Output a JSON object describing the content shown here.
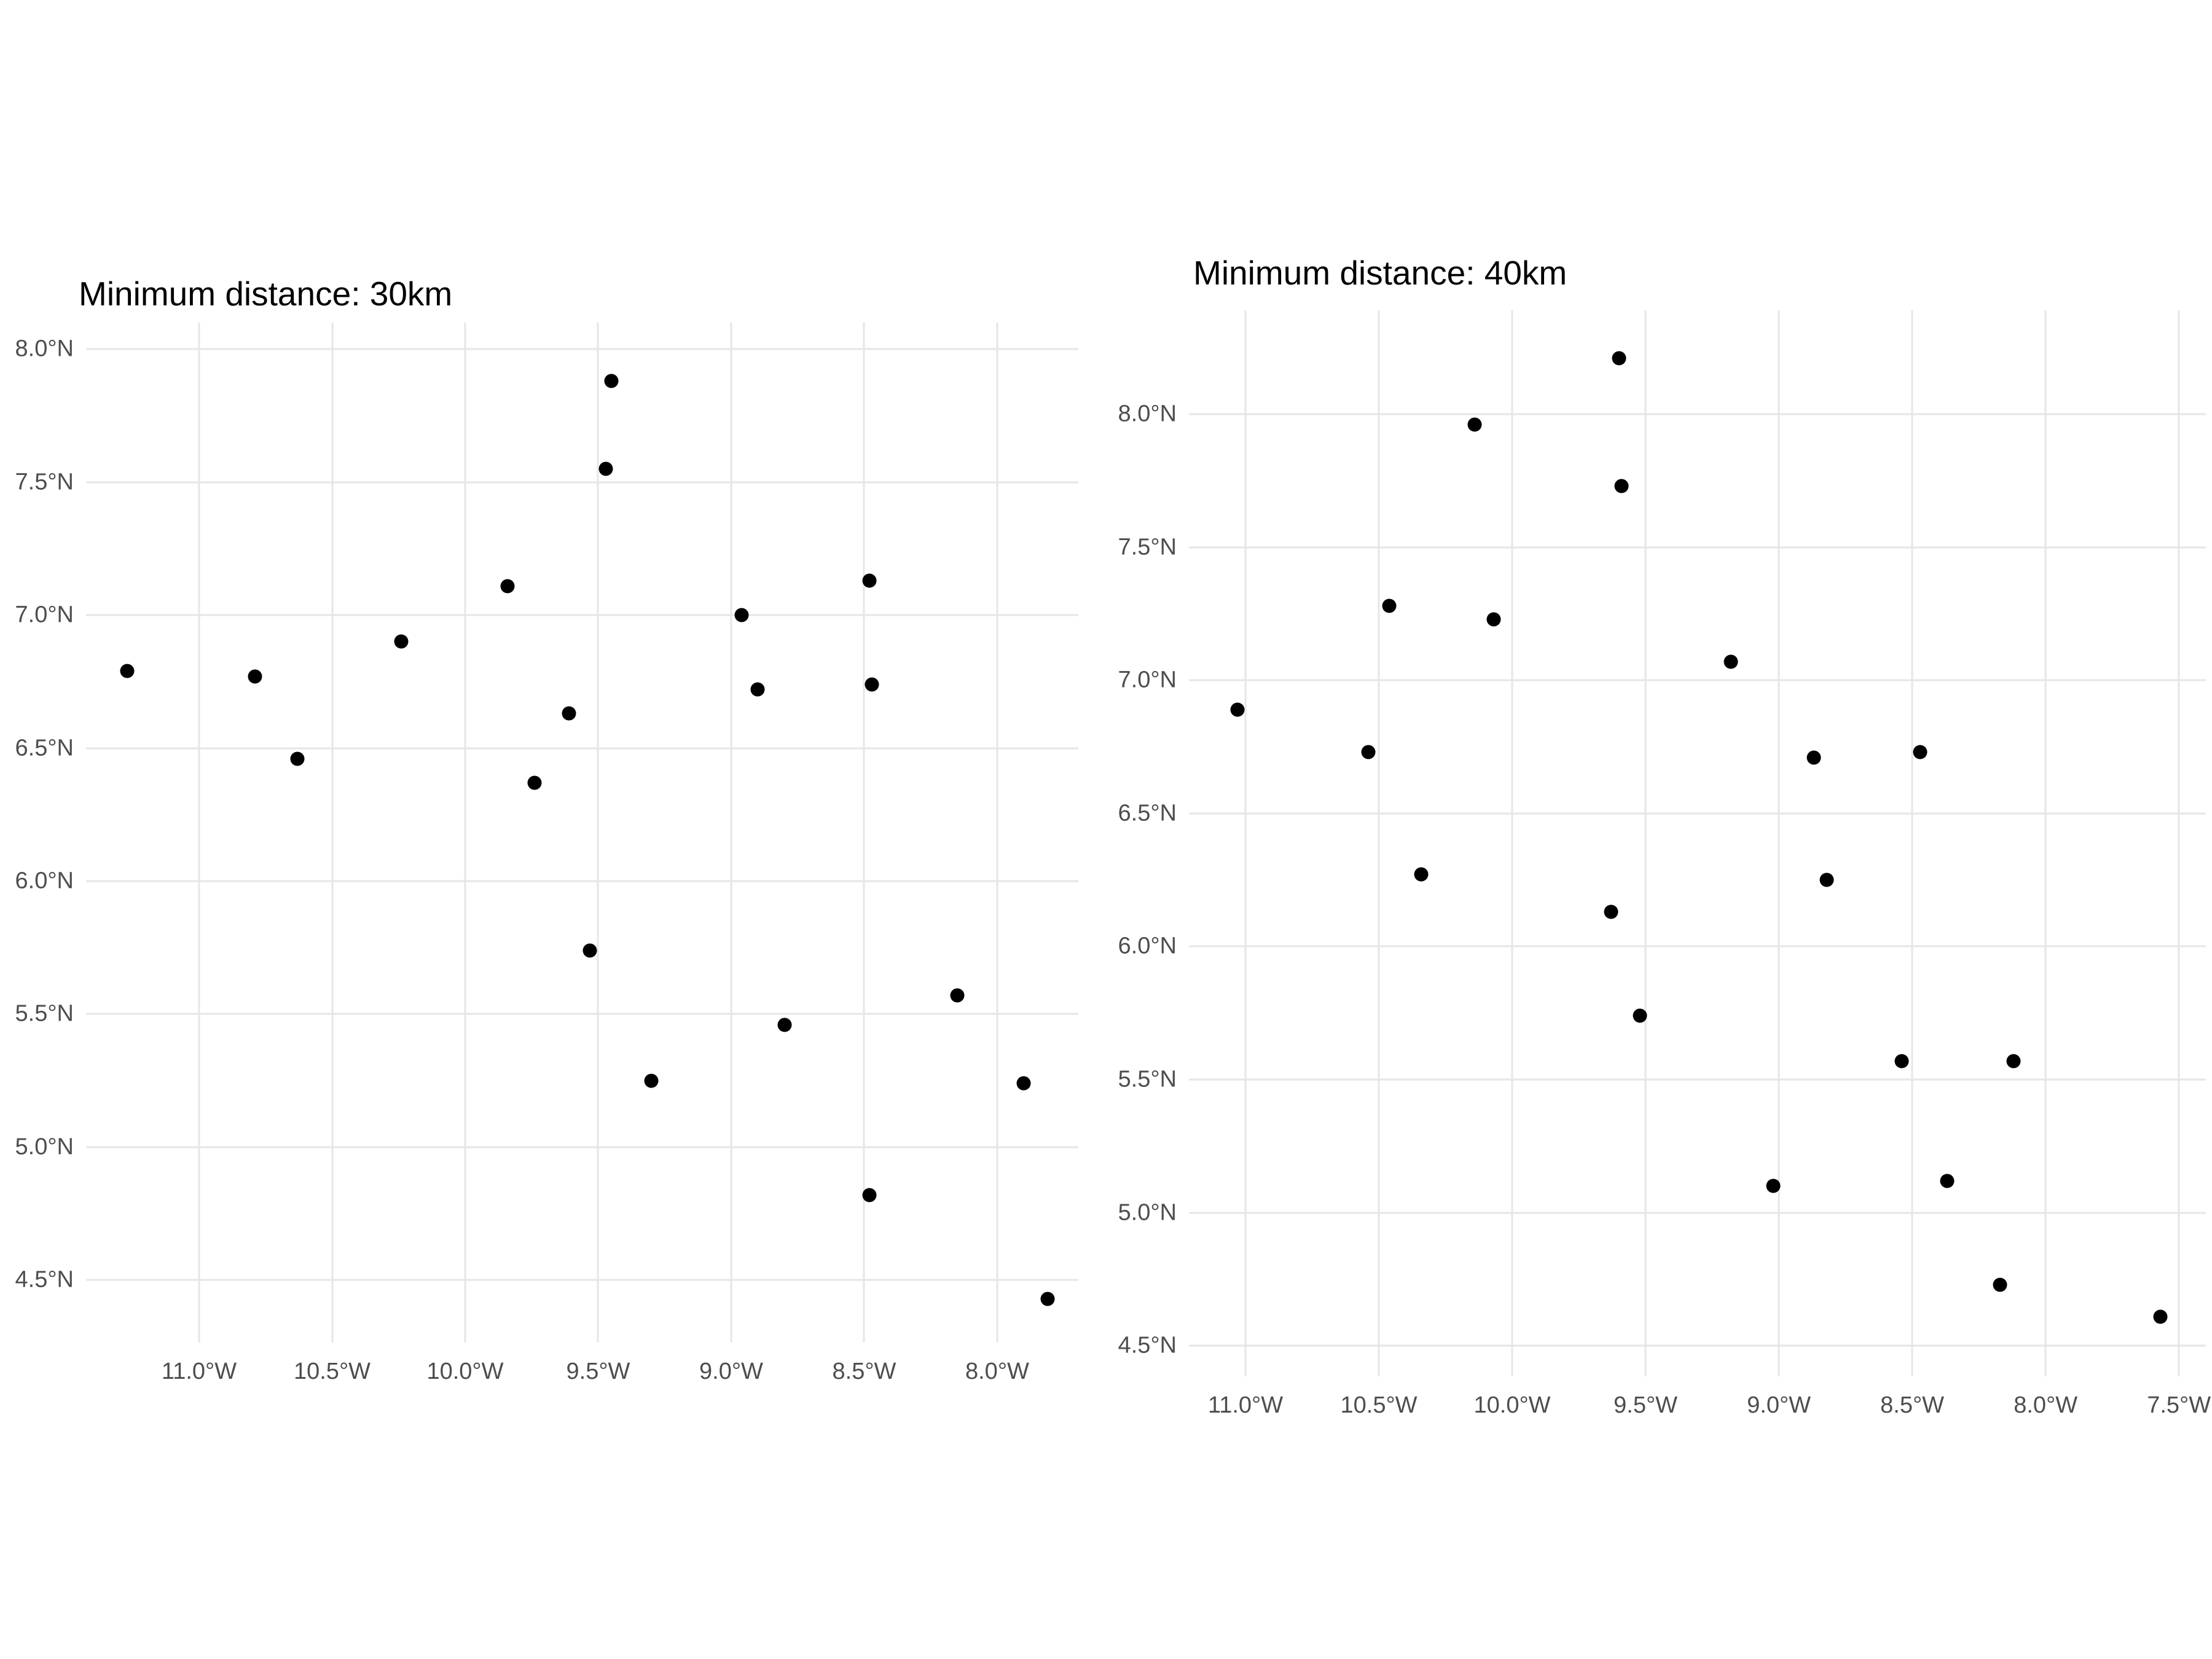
{
  "page": {
    "background": "#FFFFFF"
  },
  "colors": {
    "background": "#FFFFFF",
    "point": "#000000",
    "gridline": "#E6E6E6",
    "tick_label": "#4D4D4D",
    "title": "#000000"
  },
  "chart_data": [
    {
      "id": "min-dist-30km",
      "type": "scatter",
      "title": "Minimum distance: 30km",
      "xlabel": "",
      "ylabel": "",
      "legend": "none",
      "grid": true,
      "xlim": [
        -11.425,
        -7.695
      ],
      "ylim": [
        4.265,
        8.1
      ],
      "x_ticks": [
        {
          "value": -11.0,
          "label": "11.0°W"
        },
        {
          "value": -10.5,
          "label": "10.5°W"
        },
        {
          "value": -10.0,
          "label": "10.0°W"
        },
        {
          "value": -9.5,
          "label": "9.5°W"
        },
        {
          "value": -9.0,
          "label": "9.0°W"
        },
        {
          "value": -8.5,
          "label": "8.5°W"
        },
        {
          "value": -8.0,
          "label": "8.0°W"
        }
      ],
      "y_ticks": [
        {
          "value": 8.0,
          "label": "8.0°N"
        },
        {
          "value": 7.5,
          "label": "7.5°N"
        },
        {
          "value": 7.0,
          "label": "7.0°N"
        },
        {
          "value": 6.5,
          "label": "6.5°N"
        },
        {
          "value": 6.0,
          "label": "6.0°N"
        },
        {
          "value": 5.5,
          "label": "5.5°N"
        },
        {
          "value": 5.0,
          "label": "5.0°N"
        },
        {
          "value": 4.5,
          "label": "4.5°N"
        }
      ],
      "points": [
        {
          "lon": -11.27,
          "lat": 6.79
        },
        {
          "lon": -10.79,
          "lat": 6.77
        },
        {
          "lon": -10.63,
          "lat": 6.46
        },
        {
          "lon": -10.24,
          "lat": 6.9
        },
        {
          "lon": -9.84,
          "lat": 7.11
        },
        {
          "lon": -9.74,
          "lat": 6.37
        },
        {
          "lon": -9.61,
          "lat": 6.63
        },
        {
          "lon": -9.47,
          "lat": 7.55
        },
        {
          "lon": -9.45,
          "lat": 7.88
        },
        {
          "lon": -9.53,
          "lat": 5.74
        },
        {
          "lon": -9.3,
          "lat": 5.25
        },
        {
          "lon": -8.96,
          "lat": 7.0
        },
        {
          "lon": -8.9,
          "lat": 6.72
        },
        {
          "lon": -8.8,
          "lat": 5.46
        },
        {
          "lon": -8.48,
          "lat": 7.13
        },
        {
          "lon": -8.47,
          "lat": 6.74
        },
        {
          "lon": -8.48,
          "lat": 4.82
        },
        {
          "lon": -8.15,
          "lat": 5.57
        },
        {
          "lon": -7.9,
          "lat": 5.24
        },
        {
          "lon": -7.81,
          "lat": 4.43
        }
      ]
    },
    {
      "id": "min-dist-40km",
      "type": "scatter",
      "title": "Minimum distance: 40km",
      "xlabel": "",
      "ylabel": "",
      "legend": "none",
      "grid": true,
      "xlim": [
        -11.212,
        -7.399
      ],
      "ylim": [
        4.385,
        8.39
      ],
      "x_ticks": [
        {
          "value": -11.0,
          "label": "11.0°W"
        },
        {
          "value": -10.5,
          "label": "10.5°W"
        },
        {
          "value": -10.0,
          "label": "10.0°W"
        },
        {
          "value": -9.5,
          "label": "9.5°W"
        },
        {
          "value": -9.0,
          "label": "9.0°W"
        },
        {
          "value": -8.5,
          "label": "8.5°W"
        },
        {
          "value": -8.0,
          "label": "8.0°W"
        },
        {
          "value": -7.5,
          "label": "7.5°W"
        }
      ],
      "y_ticks": [
        {
          "value": 8.0,
          "label": "8.0°N"
        },
        {
          "value": 7.5,
          "label": "7.5°N"
        },
        {
          "value": 7.0,
          "label": "7.0°N"
        },
        {
          "value": 6.5,
          "label": "6.5°N"
        },
        {
          "value": 6.0,
          "label": "6.0°N"
        },
        {
          "value": 5.5,
          "label": "5.5°N"
        },
        {
          "value": 5.0,
          "label": "5.0°N"
        },
        {
          "value": 4.5,
          "label": "4.5°N"
        }
      ],
      "points": [
        {
          "lon": -11.03,
          "lat": 6.89
        },
        {
          "lon": -10.54,
          "lat": 6.73
        },
        {
          "lon": -10.46,
          "lat": 7.28
        },
        {
          "lon": -10.34,
          "lat": 6.27
        },
        {
          "lon": -10.14,
          "lat": 7.96
        },
        {
          "lon": -10.07,
          "lat": 7.23
        },
        {
          "lon": -9.63,
          "lat": 6.13
        },
        {
          "lon": -9.6,
          "lat": 8.21
        },
        {
          "lon": -9.59,
          "lat": 7.73
        },
        {
          "lon": -9.52,
          "lat": 5.74
        },
        {
          "lon": -9.18,
          "lat": 7.07
        },
        {
          "lon": -9.02,
          "lat": 5.1
        },
        {
          "lon": -8.87,
          "lat": 6.71
        },
        {
          "lon": -8.82,
          "lat": 6.25
        },
        {
          "lon": -8.54,
          "lat": 5.57
        },
        {
          "lon": -8.47,
          "lat": 6.73
        },
        {
          "lon": -8.37,
          "lat": 5.12
        },
        {
          "lon": -8.12,
          "lat": 5.57
        },
        {
          "lon": -8.17,
          "lat": 4.73
        },
        {
          "lon": -7.57,
          "lat": 4.61
        }
      ]
    }
  ]
}
